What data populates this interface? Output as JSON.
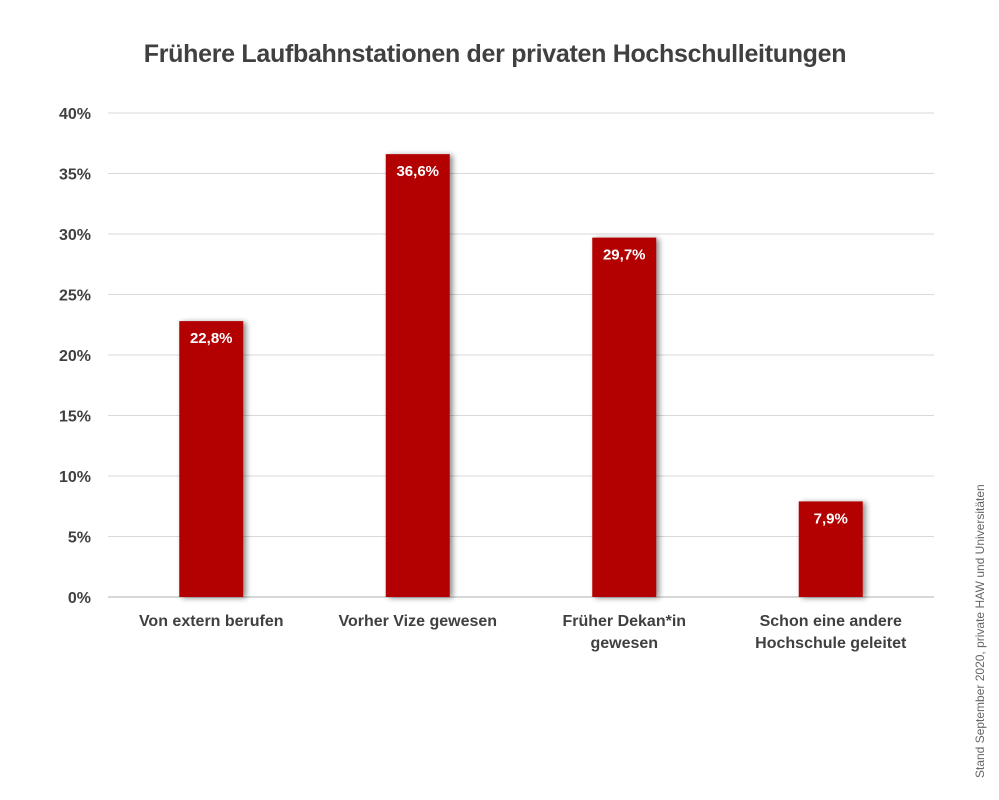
{
  "chart_data": {
    "type": "bar",
    "title": "Frühere Laufbahnstationen der privaten Hochschulleitungen",
    "categories": [
      [
        "Von extern berufen"
      ],
      [
        "Vorher Vize gewesen"
      ],
      [
        "Früher Dekan*in",
        "gewesen"
      ],
      [
        "Schon eine andere",
        "Hochschule geleitet"
      ]
    ],
    "values": [
      22.8,
      36.6,
      29.7,
      7.9
    ],
    "data_labels": [
      "22,8%",
      "36,6%",
      "29,7%",
      "7,9%"
    ],
    "ylim": [
      0,
      40
    ],
    "yticks": [
      0,
      5,
      10,
      15,
      20,
      25,
      30,
      35,
      40
    ],
    "ytick_labels": [
      "0%",
      "5%",
      "10%",
      "15%",
      "20%",
      "25%",
      "30%",
      "35%",
      "40%"
    ],
    "xlabel": "",
    "ylabel": "",
    "grid": true,
    "bar_color": "#b30000",
    "source_note": "Stand September 2020, private HAW und Universitäten"
  }
}
